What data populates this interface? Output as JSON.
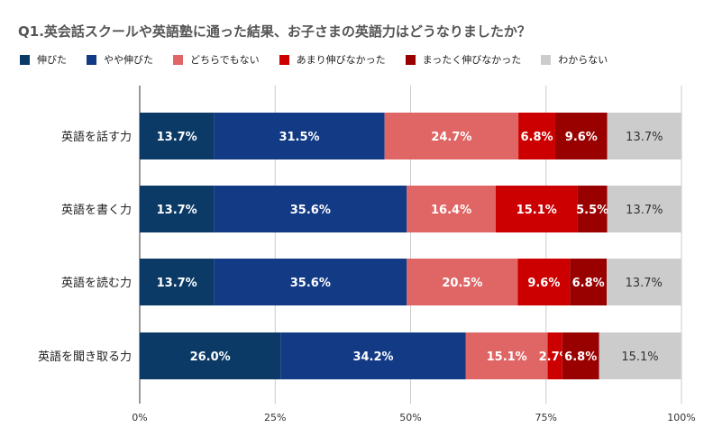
{
  "chart_data": {
    "type": "bar",
    "orientation": "horizontal",
    "stacked": true,
    "title": "Q1.英会話スクールや英語塾に通った結果、お子さまの英語力はどうなりましたか？",
    "categories": [
      "英語を話す力",
      "英語を書く力",
      "英語を読む力",
      "英語を聞き取る力"
    ],
    "series": [
      {
        "name": "伸びた",
        "color": "#0b3a66",
        "values": [
          13.7,
          13.7,
          13.7,
          26.0
        ],
        "labels": [
          "13.7%",
          "13.7%",
          "13.7%",
          "26.0%"
        ]
      },
      {
        "name": "やや伸びた",
        "color": "#123a85",
        "values": [
          31.5,
          35.6,
          35.6,
          34.2
        ],
        "labels": [
          "31.5%",
          "35.6%",
          "35.6%",
          "34.2%"
        ]
      },
      {
        "name": "どちらでもない",
        "color": "#e06666",
        "values": [
          24.7,
          16.4,
          20.5,
          15.1
        ],
        "labels": [
          "24.7%",
          "16.4%",
          "20.5%",
          "15.1%"
        ]
      },
      {
        "name": "あまり伸びなかった",
        "color": "#cc0000",
        "values": [
          6.8,
          15.1,
          9.6,
          2.7
        ],
        "labels": [
          "6.8%",
          "15.1%",
          "9.6%",
          "2.7%"
        ]
      },
      {
        "name": "まったく伸びなかった",
        "color": "#990000",
        "values": [
          9.6,
          5.5,
          6.8,
          6.8
        ],
        "labels": [
          "9.6%",
          "5.5%",
          "6.8%",
          "6.8%"
        ]
      },
      {
        "name": "わからない",
        "color": "#cccccc",
        "values": [
          13.7,
          13.7,
          13.7,
          15.1
        ],
        "labels": [
          "13.7%",
          "13.7%",
          "13.7%",
          "15.1%"
        ]
      }
    ],
    "xlim": [
      0,
      100
    ],
    "x_ticks": [
      "0%",
      "25%",
      "50%",
      "75%",
      "100%"
    ],
    "grid": true,
    "legend_position": "top"
  }
}
